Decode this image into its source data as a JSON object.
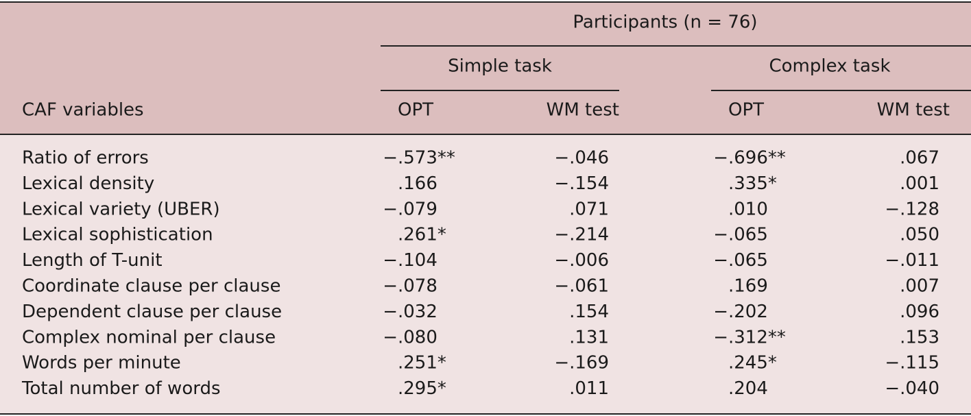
{
  "table": {
    "group": "Participants (n = 76)",
    "subgroups": [
      "Simple task",
      "Complex task"
    ],
    "columns": [
      "CAF variables",
      "OPT",
      "WM test",
      "OPT",
      "WM test"
    ],
    "rows": [
      [
        "Ratio of errors",
        "−.573**",
        "−.046",
        "−.696**",
        ".067"
      ],
      [
        "Lexical density",
        ".166",
        "−.154",
        ".335*",
        ".001"
      ],
      [
        "Lexical variety (UBER)",
        "−.079",
        ".071",
        ".010",
        "−.128"
      ],
      [
        "Lexical sophistication",
        ".261*",
        "−.214",
        "−.065",
        ".050"
      ],
      [
        "Length of T-unit",
        "−.104",
        "−.006",
        "−.065",
        "−.011"
      ],
      [
        "Coordinate clause per clause",
        "−.078",
        "−.061",
        ".169",
        ".007"
      ],
      [
        "Dependent clause per clause",
        "−.032",
        ".154",
        "−.202",
        ".096"
      ],
      [
        "Complex nominal per clause",
        "−.080",
        ".131",
        "−.312**",
        ".153"
      ],
      [
        "Words per minute",
        ".251*",
        "−.169",
        ".245*",
        "−.115"
      ],
      [
        "Total number of words",
        ".295*",
        ".011",
        ".204",
        "−.040"
      ]
    ]
  }
}
